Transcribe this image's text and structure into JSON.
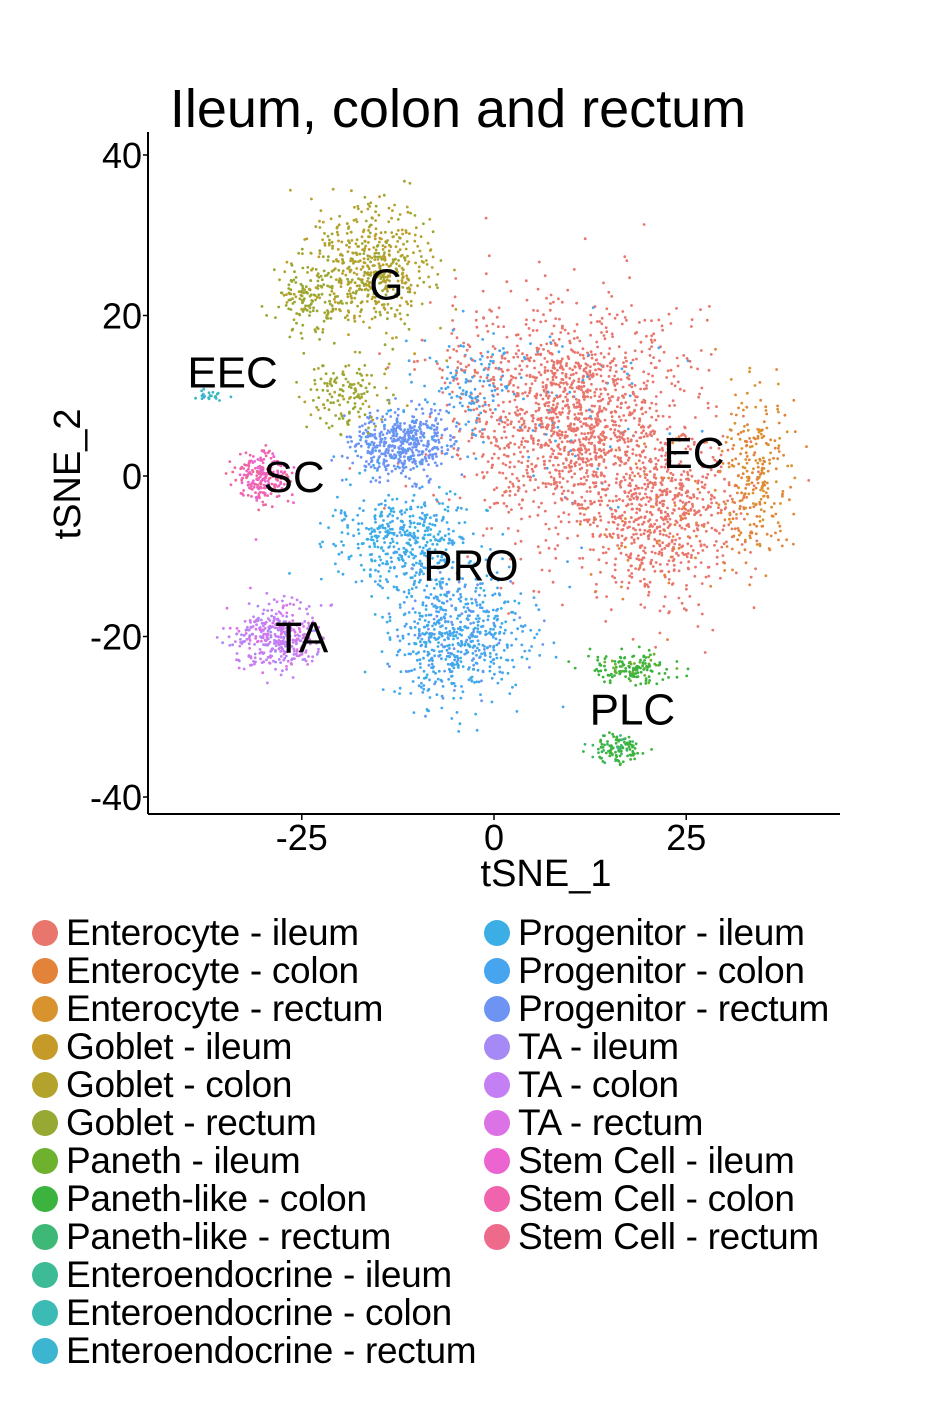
{
  "chart_data": {
    "type": "scatter",
    "title": "Ileum, colon and rectum",
    "xlabel": "tSNE_1",
    "ylabel": "tSNE_2",
    "xlim": [
      -45,
      45
    ],
    "ylim": [
      -42,
      42
    ],
    "x_ticks": [
      -25,
      0,
      25
    ],
    "y_ticks": [
      -40,
      -20,
      0,
      20,
      40
    ],
    "grid": false,
    "legend_position": "bottom",
    "cluster_labels": [
      {
        "text": "G",
        "x": -14,
        "y": 24
      },
      {
        "text": "EEC",
        "x": -34,
        "y": 13
      },
      {
        "text": "SC",
        "x": -26,
        "y": 0
      },
      {
        "text": "EC",
        "x": 26,
        "y": 3
      },
      {
        "text": "PRO",
        "x": -3,
        "y": -11
      },
      {
        "text": "TA",
        "x": -25,
        "y": -20
      },
      {
        "text": "PLC",
        "x": 18,
        "y": -29
      }
    ],
    "series": [
      {
        "name": "Enterocyte - ileum",
        "color": "#E8766D"
      },
      {
        "name": "Enterocyte - colon",
        "color": "#E3833A"
      },
      {
        "name": "Enterocyte - rectum",
        "color": "#D9932E"
      },
      {
        "name": "Goblet - ileum",
        "color": "#C59A28"
      },
      {
        "name": "Goblet - colon",
        "color": "#B3A32C"
      },
      {
        "name": "Goblet - rectum",
        "color": "#97A833"
      },
      {
        "name": "Paneth - ileum",
        "color": "#6DB12E"
      },
      {
        "name": "Paneth-like - colon",
        "color": "#3BB33E"
      },
      {
        "name": "Paneth-like - rectum",
        "color": "#3DB876"
      },
      {
        "name": "Enteroendocrine - ileum",
        "color": "#3DBB97"
      },
      {
        "name": "Enteroendocrine - colon",
        "color": "#3CBBB5"
      },
      {
        "name": "Enteroendocrine - rectum",
        "color": "#3BB5D0"
      },
      {
        "name": "Progenitor - ileum",
        "color": "#3BAEE6"
      },
      {
        "name": "Progenitor - colon",
        "color": "#47A4EE"
      },
      {
        "name": "Progenitor - rectum",
        "color": "#6D93F3"
      },
      {
        "name": "TA - ileum",
        "color": "#A58AF5"
      },
      {
        "name": "TA - colon",
        "color": "#C37FF3"
      },
      {
        "name": "TA - rectum",
        "color": "#DB72E6"
      },
      {
        "name": "Stem Cell - ileum",
        "color": "#EC64D0"
      },
      {
        "name": "Stem Cell - colon",
        "color": "#F064AD"
      },
      {
        "name": "Stem Cell - rectum",
        "color": "#EE6A8A"
      }
    ]
  }
}
